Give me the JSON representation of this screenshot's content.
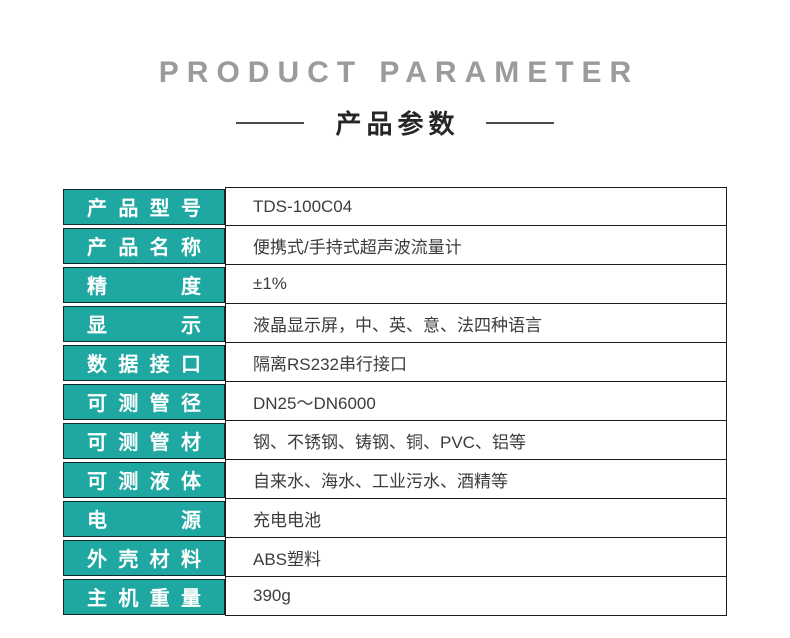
{
  "header": {
    "title_en": "PRODUCT PARAMETER",
    "title_zh": "产品参数"
  },
  "table": {
    "rows": [
      {
        "label": "产品型号",
        "value": "TDS-100C04"
      },
      {
        "label": "产品名称",
        "value": "便携式/手持式超声波流量计"
      },
      {
        "label": "精度",
        "value": "±1%"
      },
      {
        "label": "显示",
        "value": "液晶显示屏，中、英、意、法四种语言"
      },
      {
        "label": "数据接口",
        "value": "隔离RS232串行接口"
      },
      {
        "label": "可测管径",
        "value": "DN25～DN6000"
      },
      {
        "label": "可测管材",
        "value": "钢、不锈钢、铸钢、铜、PVC、铝等"
      },
      {
        "label": "可测液体",
        "value": "自来水、海水、工业污水、酒精等"
      },
      {
        "label": "电源",
        "value": "充电电池"
      },
      {
        "label": "外壳材料",
        "value": "ABS塑料"
      },
      {
        "label": "主机重量",
        "value": "390g"
      }
    ]
  },
  "colors": {
    "accent_teal": "#1FA8A2",
    "cell_border": "#13292E",
    "grid_border": "#1B1B1B",
    "label_text": "#FFFFFF",
    "value_text": "#3C3C3C",
    "title_gray": "#9B9B9B",
    "subtitle_black": "#262626"
  }
}
